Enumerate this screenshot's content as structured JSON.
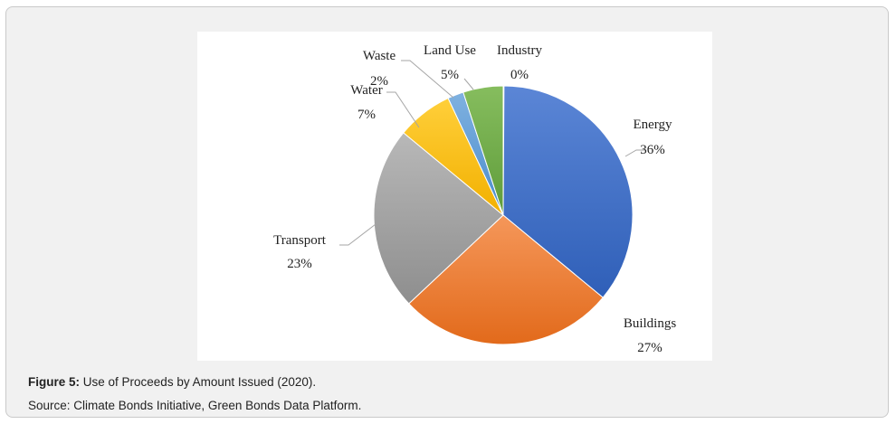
{
  "chart_data": {
    "type": "pie",
    "title": "",
    "slices": [
      {
        "label": "Energy",
        "value": 36,
        "display": "36%",
        "color": "#4472c4"
      },
      {
        "label": "Buildings",
        "value": 27,
        "display": "27%",
        "color": "#ed7d31"
      },
      {
        "label": "Transport",
        "value": 23,
        "display": "23%",
        "color": "#a5a5a5"
      },
      {
        "label": "Water",
        "value": 7,
        "display": "7%",
        "color": "#ffc000"
      },
      {
        "label": "Waste",
        "value": 2,
        "display": "2%",
        "color": "#5b9bd5"
      },
      {
        "label": "Land Use",
        "value": 5,
        "display": "5%",
        "color": "#70ad47"
      },
      {
        "label": "Industry",
        "value": 0,
        "display": "0%",
        "color": "#264478"
      }
    ]
  },
  "caption": {
    "figure_label": "Figure 5:",
    "text": " Use of Proceeds by Amount Issued (2020).",
    "source": "Source: Climate Bonds Initiative, Green Bonds Data Platform."
  }
}
